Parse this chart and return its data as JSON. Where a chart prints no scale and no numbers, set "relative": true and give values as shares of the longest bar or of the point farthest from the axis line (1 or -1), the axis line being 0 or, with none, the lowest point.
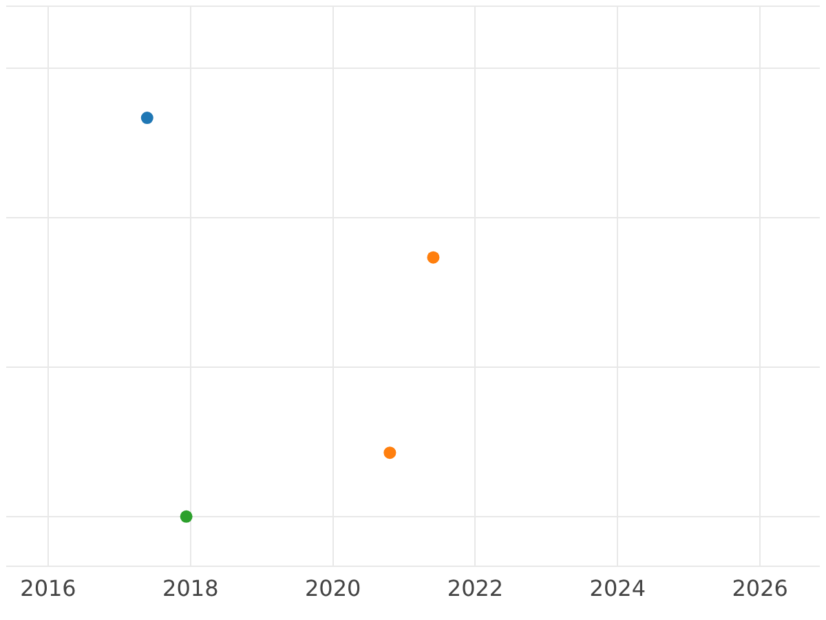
{
  "chart_data": {
    "type": "scatter",
    "relative": true,
    "xlim": [
      2015.41,
      2026.84
    ],
    "xticks": [
      2016,
      2018,
      2020,
      2022,
      2024,
      2026
    ],
    "grid": true,
    "legend": false,
    "tick_labels": "x",
    "marker": "circle",
    "series": [
      {
        "color": "#1f77b4",
        "x": [
          2017.39
        ],
        "values": [
          1
        ]
      },
      {
        "color": "#ff7f0e",
        "x": [
          2021.41,
          2020.8
        ],
        "values": [
          0.65,
          0.16
        ]
      },
      {
        "color": "#2ca02c",
        "x": [
          2017.94
        ],
        "values": [
          0
        ]
      }
    ]
  }
}
